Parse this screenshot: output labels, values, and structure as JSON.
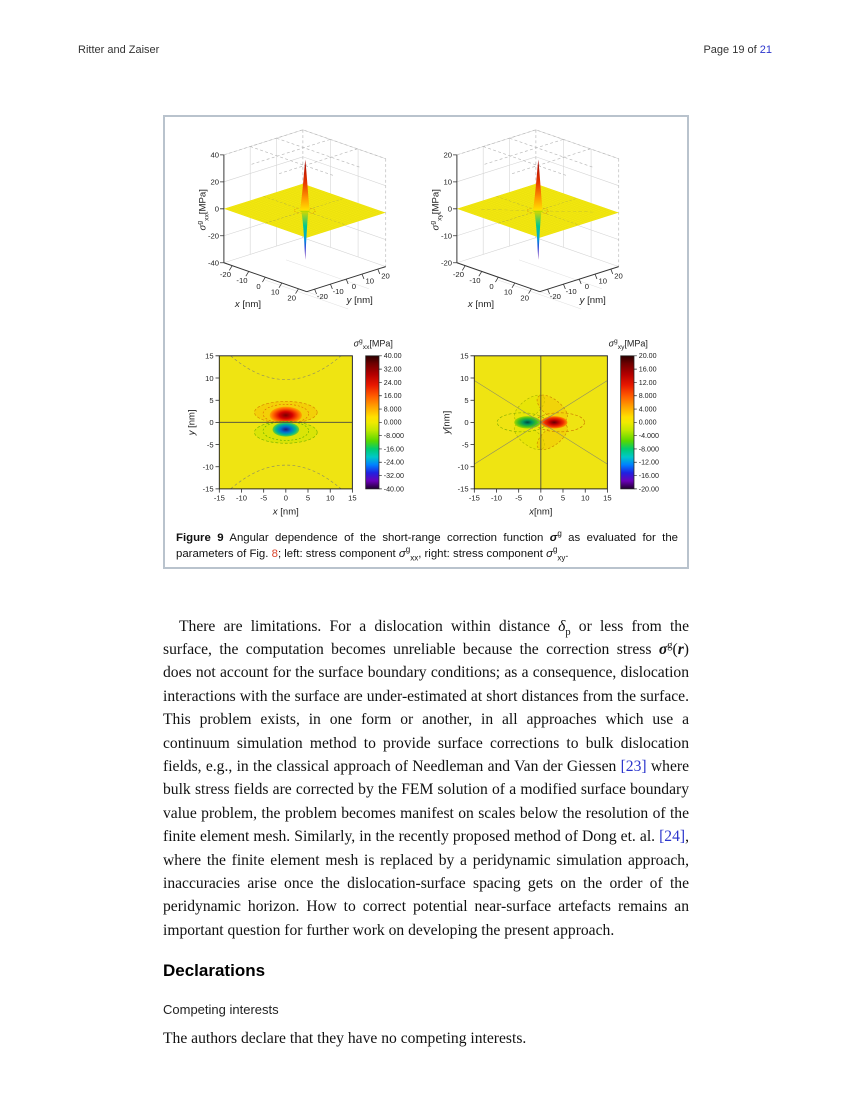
{
  "header": {
    "running_title": "Ritter and Zaiser",
    "page_prefix": "Page 19 of ",
    "page_total_link": "21"
  },
  "figure": {
    "caption_segments": [
      {
        "t": "Figure 9",
        "c": "b"
      },
      {
        "t": " Angular dependence of the short-range correction function ",
        "c": ""
      },
      {
        "t": "σ",
        "c": "bi"
      },
      {
        "t": "g",
        "c": "sup"
      },
      {
        "t": " as evaluated for the parameters of Fig. ",
        "c": ""
      },
      {
        "t": "8",
        "c": "figref"
      },
      {
        "t": "; left: stress component ",
        "c": ""
      },
      {
        "t": "σ",
        "c": "i"
      },
      {
        "t": "g",
        "c": "sup"
      },
      {
        "t": "xx",
        "c": "sub"
      },
      {
        "t": ", right: stress component ",
        "c": ""
      },
      {
        "t": "σ",
        "c": "i"
      },
      {
        "t": "g",
        "c": "sup"
      },
      {
        "t": "xy",
        "c": "sub"
      },
      {
        "t": ".",
        "c": ""
      }
    ]
  },
  "chart_data": [
    {
      "type": "surface3d",
      "title": "short-range correction stress sigma_g_xx over x-y plane",
      "zlabel": {
        "sym": "σ",
        "sup": "g",
        "sub": "xx",
        "unit": "[MPa]"
      },
      "xlabel": {
        "var": "x",
        "unit": " [nm]"
      },
      "ylabel": {
        "var": "y",
        "unit": " [nm]"
      },
      "zticks": [
        "40",
        "20",
        "0",
        "-20",
        "-40"
      ],
      "xticks": [
        "-20",
        "-10",
        "0",
        "10",
        "20"
      ],
      "yticks": [
        "-20",
        "-10",
        "0",
        "10",
        "20"
      ],
      "zlim": [
        -40,
        40
      ],
      "xlim": [
        -25,
        25
      ],
      "ylim": [
        -25,
        25
      ],
      "surface": "flat zero plane with sharp positive spike to ~+40 MPa and negative spike to ~-40 MPa at the origin"
    },
    {
      "type": "surface3d",
      "title": "short-range correction stress sigma_g_xy over x-y plane",
      "zlabel": {
        "sym": "σ",
        "sup": "g",
        "sub": "xy",
        "unit": "[MPa]"
      },
      "xlabel": {
        "var": "x",
        "unit": " [nm]"
      },
      "ylabel": {
        "var": "y",
        "unit": " [nm]"
      },
      "zticks": [
        "20",
        "10",
        "0",
        "-10",
        "-20"
      ],
      "xticks": [
        "-20",
        "-10",
        "0",
        "10",
        "20"
      ],
      "yticks": [
        "-20",
        "-10",
        "0",
        "10",
        "20"
      ],
      "zlim": [
        -20,
        20
      ],
      "xlim": [
        -25,
        25
      ],
      "ylim": [
        -25,
        25
      ],
      "surface": "flat zero plane with sharp positive spike to ~+20 MPa and negative spike to ~-20 MPa at the origin"
    },
    {
      "type": "contour",
      "title": "sigma_g_xx contour map",
      "colorbar_label": {
        "sym": "σ",
        "sup": "g",
        "sub": "xx",
        "unit": "[MPa]"
      },
      "colorbar_ticks": [
        "40.00",
        "32.00",
        "24.00",
        "16.00",
        "8.000",
        "0.000",
        "-8.000",
        "-16.00",
        "-24.00",
        "-32.00",
        "-40.00"
      ],
      "xticks": [
        "-15",
        "-10",
        "-5",
        "0",
        "5",
        "10",
        "15"
      ],
      "yticks": [
        "15",
        "10",
        "5",
        "0",
        "-5",
        "-10",
        "-15"
      ],
      "xlabel": {
        "var": "x",
        "unit": " [nm]"
      },
      "ylabel": {
        "var": "y",
        "unit": " [nm]"
      },
      "xlim": [
        -15,
        15
      ],
      "ylim": [
        -15,
        15
      ],
      "pattern": "positive red-orange lobe just above the y=0 line, negative blue-green lobe below it, dashed hyperbolic far-field contours near top and bottom edges"
    },
    {
      "type": "contour",
      "title": "sigma_g_xy contour map",
      "colorbar_label": {
        "sym": "σ",
        "sup": "g",
        "sub": "xy",
        "unit": "[MPa]"
      },
      "colorbar_ticks": [
        "20.00",
        "16.00",
        "12.00",
        "8.000",
        "4.000",
        "0.000",
        "-4.000",
        "-8.000",
        "-12.00",
        "-16.00",
        "-20.00"
      ],
      "xticks": [
        "-15",
        "-10",
        "-5",
        "0",
        "5",
        "10",
        "15"
      ],
      "yticks": [
        "15",
        "10",
        "5",
        "0",
        "-5",
        "-10",
        "-15"
      ],
      "xlabel": {
        "var": "x",
        "unit": "[nm]"
      },
      "ylabel": {
        "var": "y",
        "unit": "[nm]"
      },
      "xlim": [
        -15,
        15
      ],
      "ylim": [
        -15,
        15
      ],
      "pattern": "antisymmetric four-lobe pattern: negative green-blue core left of origin, positive red core right of origin, vertical zero line at x=0 and diagonal zero lines"
    }
  ],
  "body": {
    "paragraph_segments": [
      {
        "t": "There are limitations. For a dislocation within distance ",
        "c": ""
      },
      {
        "t": "δ",
        "c": "i"
      },
      {
        "t": "p",
        "c": "sub"
      },
      {
        "t": " or less from the surface, the computation becomes unreliable because the correction stress ",
        "c": ""
      },
      {
        "t": "σ",
        "c": "bi"
      },
      {
        "t": "g",
        "c": "sup"
      },
      {
        "t": "(",
        "c": ""
      },
      {
        "t": "r",
        "c": "bi"
      },
      {
        "t": ") does not account for the surface boundary conditions; as a consequence, dislocation interactions with the surface are under-estimated at short distances from the surface. This problem exists, in one form or another, in all approaches which use a continuum simulation method to provide surface corrections to bulk dislocation fields, e.g., in the classical approach of Needleman and Van der Giessen ",
        "c": ""
      },
      {
        "t": "[23]",
        "c": "ref"
      },
      {
        "t": " where bulk stress fields are corrected by the FEM solution of a modified surface boundary value problem, the problem becomes manifest on scales below the resolution of the finite element mesh. Similarly, in the recently proposed method of Dong et. al. ",
        "c": ""
      },
      {
        "t": "[24]",
        "c": "ref"
      },
      {
        "t": ", where the finite element mesh is replaced by a peridynamic simulation approach, inaccuracies arise once the dislocation-surface spacing gets on the order of the peridynamic horizon. How to correct potential near-surface artefacts remains an important question for further work on developing the present approach.",
        "c": ""
      }
    ]
  },
  "declarations": {
    "heading": "Declarations",
    "subheading": "Competing interests",
    "text": "The authors declare that they have no competing interests."
  }
}
